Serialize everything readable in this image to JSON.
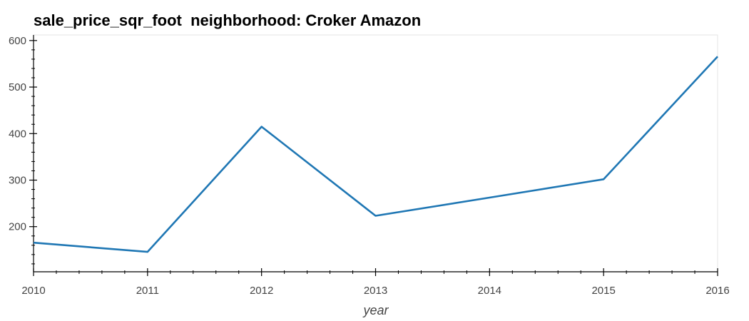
{
  "chart_data": {
    "type": "line",
    "title": "sale_price_sqr_foot  neighborhood: Croker Amazon",
    "xlabel": "year",
    "ylabel": "",
    "x": [
      2010,
      2011,
      2012,
      2013,
      2014,
      2015,
      2016
    ],
    "series": [
      {
        "values": [
          165.6,
          145.7,
          414.9,
          223.3,
          262.5,
          301.8,
          565.7
        ],
        "color": "#1f77b4"
      }
    ],
    "xlim": [
      2010,
      2016
    ],
    "ylim": [
      103,
      612
    ],
    "x_ticks": [
      2010,
      2011,
      2012,
      2013,
      2014,
      2015,
      2016
    ],
    "y_ticks": [
      200,
      300,
      400,
      500,
      600
    ],
    "grid": false,
    "legend": "none"
  }
}
